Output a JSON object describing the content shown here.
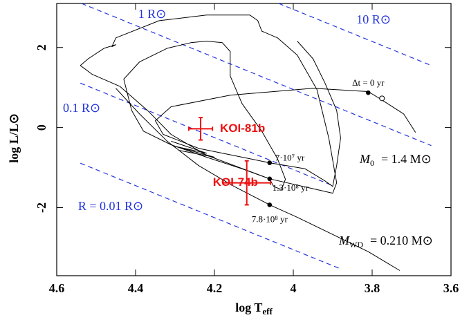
{
  "chart_data": {
    "type": "line",
    "xlabel": {
      "main": "log T",
      "sub": "eff"
    },
    "ylabel": "log L/L⊙",
    "xlim": [
      4.6,
      3.6
    ],
    "ylim": [
      -3.7,
      3.1
    ],
    "xticks": [
      4.6,
      4.4,
      4.2,
      4,
      3.8,
      3.6
    ],
    "yticks": [
      -2,
      0,
      2
    ],
    "series": [
      {
        "color": "#000000",
        "x": [
          3.69,
          3.72,
          3.78,
          3.81,
          3.95,
          4.16,
          4.31,
          4.35,
          4.33,
          4.24,
          4.11,
          4.06,
          3.97,
          3.92,
          3.9,
          3.89,
          3.88,
          3.89,
          3.92,
          3.95,
          3.99
        ],
        "y": [
          -0.12,
          0.34,
          0.72,
          0.9,
          0.98,
          0.81,
          0.52,
          0.17,
          -0.17,
          -0.52,
          -0.78,
          -0.88,
          -1.03,
          -1.33,
          -1.47,
          -0.95,
          -0.26,
          0.43,
          1.12,
          1.72,
          2.16
        ]
      },
      {
        "color": "#000000",
        "x": [
          4.14,
          4.22,
          4.34,
          4.45,
          4.46,
          4.45,
          4.48,
          4.52,
          4.54,
          4.51,
          4.44,
          4.37,
          4.31,
          4.22,
          4.06,
          3.94,
          3.9,
          3.89,
          3.91,
          3.94,
          3.99,
          4.04,
          4.08,
          4.09,
          4.11,
          4.14
        ],
        "y": [
          2.81,
          2.81,
          2.67,
          2.24,
          2.02,
          2.07,
          1.98,
          1.72,
          1.55,
          1.33,
          1.03,
          0.43,
          -0.17,
          -0.69,
          -1.28,
          -1.55,
          -1.64,
          -1.38,
          -0.26,
          0.95,
          1.81,
          2.24,
          2.41,
          2.67,
          2.81,
          2.81
        ]
      },
      {
        "color": "#000000",
        "x": [
          4.43,
          4.39,
          4.32,
          4.26,
          4.22,
          4.18,
          4.16,
          4.16,
          4.13,
          4.08,
          4.04,
          4.02,
          4.03,
          4.05,
          4.06,
          4.13,
          4.22,
          4.31,
          4.38,
          4.41,
          4.43
        ],
        "y": [
          1.21,
          1.64,
          1.98,
          2.12,
          2.16,
          2.12,
          1.9,
          1.29,
          0.6,
          -0.09,
          -0.78,
          -1.29,
          -1.55,
          -1.47,
          -1.28,
          -1.03,
          -0.74,
          -0.43,
          -0.09,
          0.43,
          1.21
        ]
      },
      {
        "color": "#000000",
        "x": [
          4.45,
          4.39,
          4.32,
          4.24,
          4.15,
          4.06,
          3.99,
          3.9,
          3.81,
          3.73
        ],
        "y": [
          0.98,
          0.34,
          -0.34,
          -0.95,
          -1.47,
          -1.93,
          -2.24,
          -2.67,
          -3.1,
          -3.57
        ]
      },
      {
        "color": "#000000",
        "x": [
          4.31,
          4.22,
          4.3,
          4.2,
          4.29
        ],
        "y": [
          -0.34,
          -0.64,
          -0.47,
          -0.74,
          -0.57
        ]
      }
    ],
    "radius_lines": [
      {
        "name": "10 R⊙",
        "color": "#2233dd",
        "x": [
          4.037,
          3.65
        ],
        "y": [
          3.1,
          1.55
        ]
      },
      {
        "name": "1 R⊙",
        "color": "#2233dd",
        "x": [
          4.537,
          3.65
        ],
        "y": [
          3.1,
          -0.45
        ]
      },
      {
        "name": "0.1 R⊙",
        "color": "#2233dd",
        "x": [
          4.54,
          3.9
        ],
        "y": [
          1.11,
          -1.45
        ]
      },
      {
        "name": "R = 0.01 R⊙",
        "color": "#2233dd",
        "x": [
          4.54,
          3.88
        ],
        "y": [
          -0.89,
          -3.53
        ]
      }
    ],
    "points": [
      {
        "name": "KOI-81b",
        "color": "#ee1111",
        "x": 4.235,
        "y": -0.03,
        "xerr": 0.03,
        "yerr": 0.28
      },
      {
        "name": "KOI-74b",
        "color": "#ee1111",
        "x": 4.118,
        "y": -1.38,
        "xerr": 0.06,
        "yerr": 0.55
      }
    ],
    "markers": [
      {
        "label": "Δt = 0 yr",
        "x": 3.81,
        "y": 0.87,
        "filled": true
      },
      {
        "x": 3.775,
        "y": 0.73,
        "filled": false
      },
      {
        "label": "7·10⁷ yr",
        "x": 4.06,
        "y": -0.88,
        "filled": true
      },
      {
        "label": "1.3·10⁸ yr",
        "x": 4.06,
        "y": -1.28,
        "filled": true
      },
      {
        "label": "7.8·10⁸ yr",
        "x": 4.06,
        "y": -1.93,
        "filled": true
      }
    ],
    "annotations": [
      {
        "main": "M",
        "sub": "0",
        "rest": "= 1.4 M⊙"
      },
      {
        "main": "M",
        "sub": "WD",
        "rest": "= 0.210 M⊙"
      }
    ]
  }
}
